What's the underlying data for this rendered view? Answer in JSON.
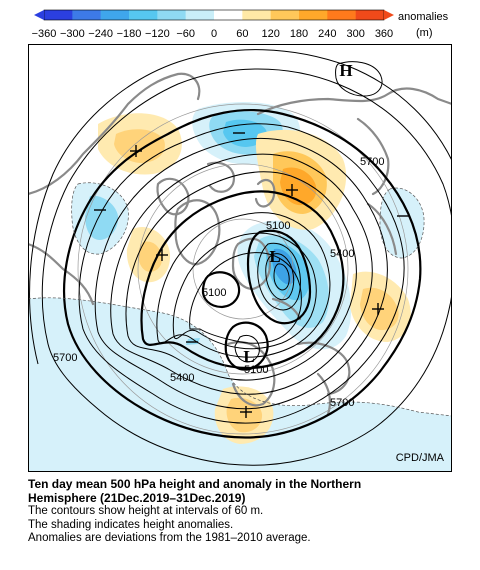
{
  "colorbar": {
    "ticks": [
      "−360",
      "−300",
      "−240",
      "−180",
      "−120",
      "−60",
      "0",
      "60",
      "120",
      "180",
      "240",
      "300",
      "360"
    ],
    "unit_line1": "anomalies",
    "unit_line2": "(m)",
    "colors": [
      "#2b3fe0",
      "#3d7ae8",
      "#3fa6ec",
      "#56c7f0",
      "#8fdaf3",
      "#c9eef8",
      "#ffffff",
      "#ffe9a6",
      "#ffc85a",
      "#ffa82a",
      "#ff7a1c",
      "#f04a1a"
    ]
  },
  "map": {
    "contour_labels": [
      {
        "id": "c5700-ne",
        "text": "5700"
      },
      {
        "id": "c5100-n",
        "text": "5100"
      },
      {
        "id": "c5400-e",
        "text": "5400"
      },
      {
        "id": "c5100-w",
        "text": "5100"
      },
      {
        "id": "c5700-w",
        "text": "5700"
      },
      {
        "id": "c5400-s",
        "text": "5400"
      },
      {
        "id": "c5100-s",
        "text": "5100"
      },
      {
        "id": "c5700-se",
        "text": "5700"
      }
    ],
    "markers": {
      "high": "H",
      "low_center": "L",
      "low_south": "L"
    }
  },
  "credit": "CPD/JMA",
  "caption": {
    "title_line1": "Ten day mean 500 hPa height and anomaly in the Northern",
    "title_line2": "Hemisphere (21Dec.2019–31Dec.2019)",
    "line1": "The contours show height at intervals of 60 m.",
    "line2": "The shading indicates height anomalies.",
    "line3": "Anomalies are deviations from the 1981–2010 average."
  }
}
